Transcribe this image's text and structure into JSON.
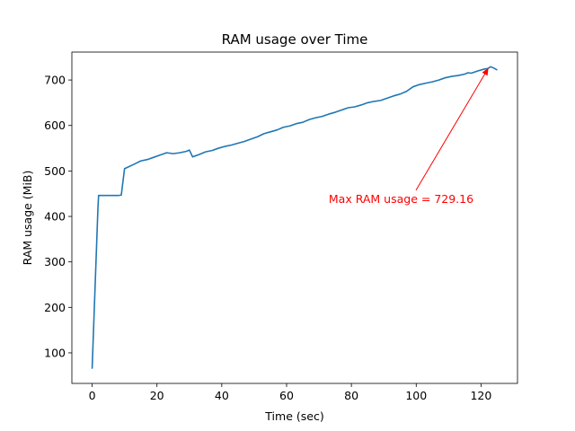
{
  "chart_data": {
    "type": "line",
    "title": "RAM usage over Time",
    "xlabel": "Time (sec)",
    "ylabel": "RAM usage (MiB)",
    "xlim": [
      -6.25,
      131.25
    ],
    "ylim": [
      32.8,
      761.4
    ],
    "xticks": [
      0,
      20,
      40,
      60,
      80,
      100,
      120
    ],
    "yticks": [
      100,
      200,
      300,
      400,
      500,
      600,
      700
    ],
    "grid": false,
    "legend": "none",
    "series_color": "#1f77b4",
    "series": [
      {
        "x": [
          0,
          1.8,
          2,
          8,
          9,
          10,
          13,
          15,
          17,
          19,
          21,
          23,
          25,
          27,
          29,
          30,
          31,
          33,
          35,
          37,
          39,
          41,
          43,
          45,
          47,
          49,
          51,
          53,
          55,
          57,
          59,
          61,
          63,
          65,
          67,
          69,
          71,
          73,
          75,
          77,
          79,
          81,
          83,
          85,
          87,
          89,
          91,
          93,
          95,
          97,
          99,
          101,
          103,
          105,
          107,
          109,
          111,
          113,
          115,
          116,
          117,
          119,
          121,
          122,
          123,
          124,
          125
        ],
        "y": [
          65,
          420,
          446,
          446,
          447,
          505,
          515,
          522,
          525,
          530,
          535,
          540,
          538,
          540,
          543,
          546,
          531,
          536,
          542,
          545,
          550,
          554,
          557,
          561,
          565,
          570,
          575,
          582,
          586,
          590,
          596,
          599,
          604,
          607,
          613,
          617,
          620,
          625,
          629,
          634,
          639,
          641,
          645,
          650,
          653,
          655,
          660,
          665,
          669,
          675,
          685,
          690,
          693,
          696,
          700,
          705,
          708,
          710,
          713,
          716,
          715,
          720,
          724,
          725,
          729.16,
          726,
          722
        ]
      }
    ],
    "annotations": [
      {
        "text": "Max RAM usage = 729.16",
        "xy": [
          122.5,
          729.16
        ],
        "xytext": [
          73,
          430
        ],
        "color": "#ff0000"
      }
    ]
  }
}
